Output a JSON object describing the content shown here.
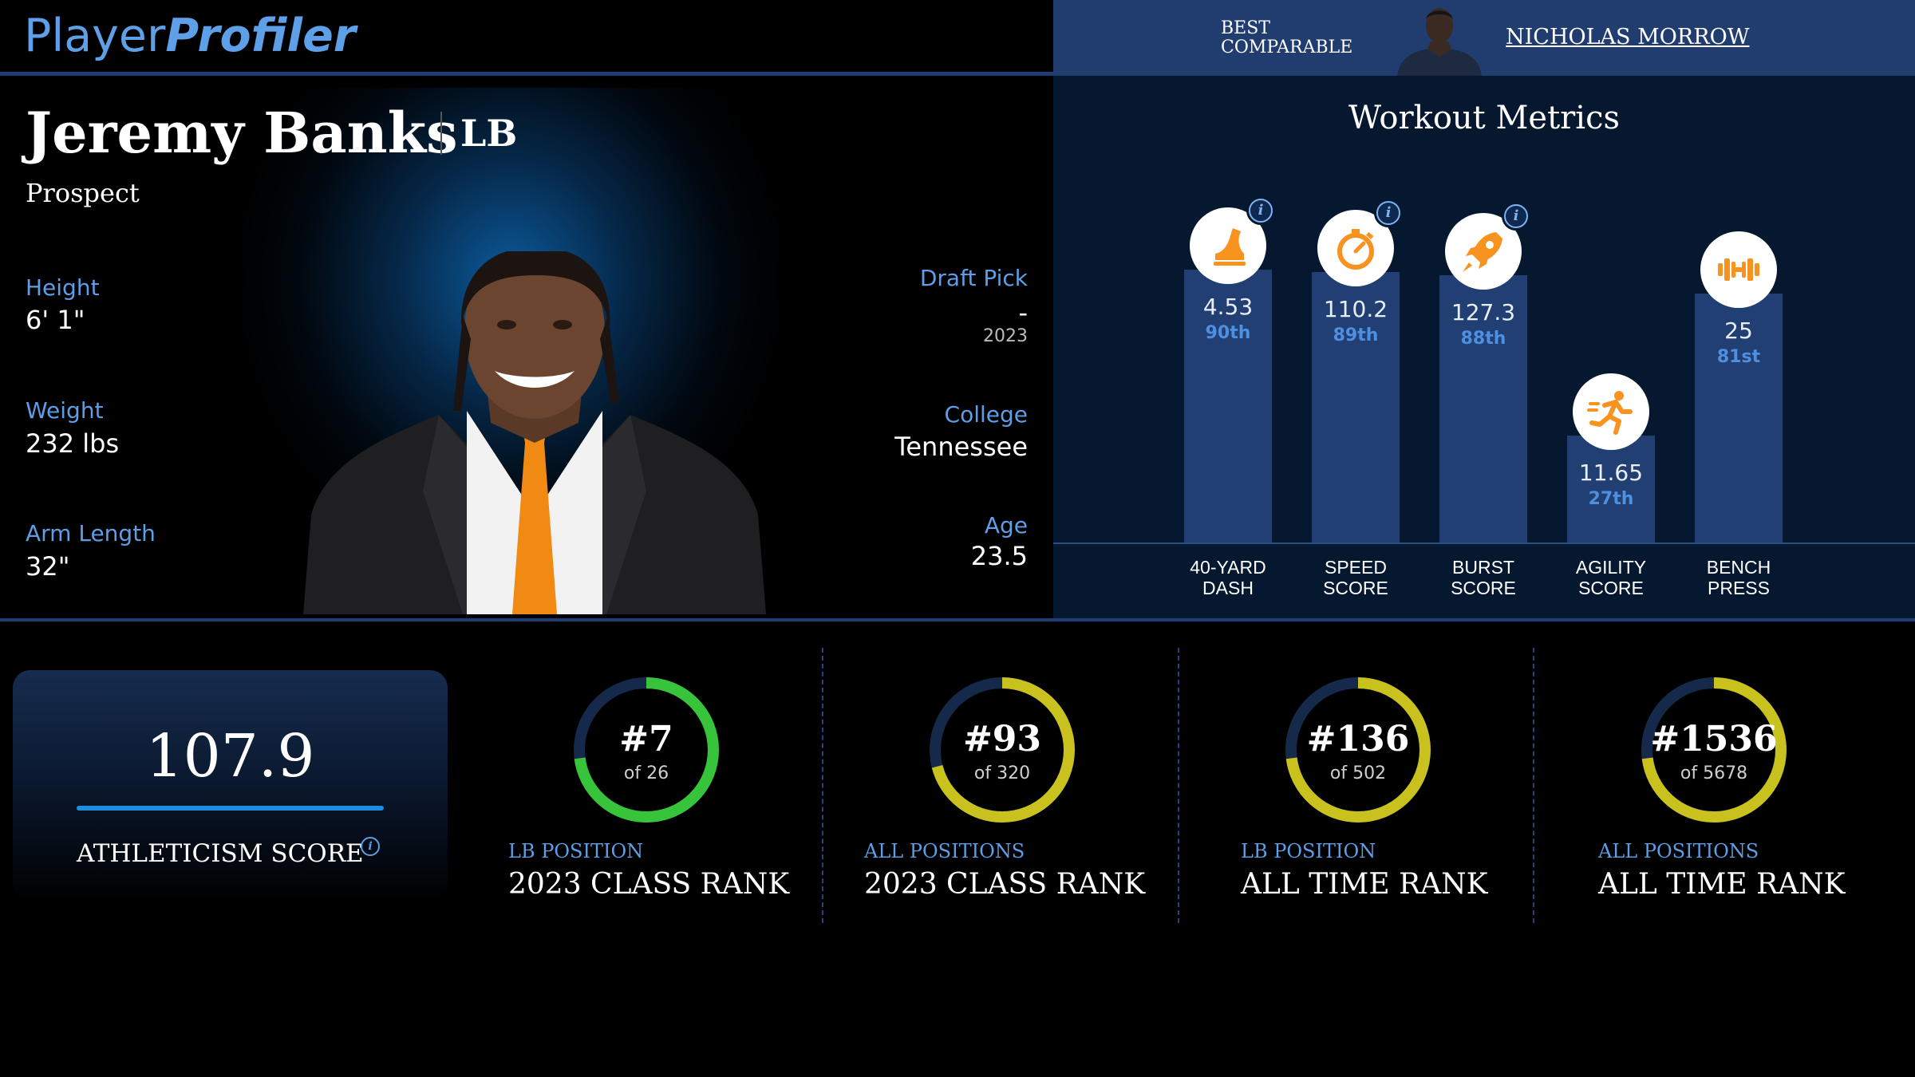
{
  "header": {
    "logo_part1": "Player",
    "logo_part2": "Profiler",
    "comparable_label_line1": "BEST",
    "comparable_label_line2": "COMPARABLE",
    "comparable_name": "NICHOLAS MORROW"
  },
  "player": {
    "name": "Jeremy Banks",
    "position": "LB",
    "status": "Prospect",
    "height_label": "Height",
    "height_value": "6' 1\"",
    "weight_label": "Weight",
    "weight_value": "232 lbs",
    "arm_label": "Arm Length",
    "arm_value": "32\"",
    "draft_label": "Draft Pick",
    "draft_value": "-",
    "draft_year": "2023",
    "college_label": "College",
    "college_value": "Tennessee",
    "age_label": "Age",
    "age_value": "23.5"
  },
  "workout": {
    "title": "Workout Metrics",
    "metrics": [
      {
        "line1": "40-YARD",
        "line2": "DASH",
        "value": "4.53",
        "percentile": "90th",
        "pct": 90,
        "icon": "shoe-icon",
        "info": true
      },
      {
        "line1": "SPEED",
        "line2": "SCORE",
        "value": "110.2",
        "percentile": "89th",
        "pct": 89,
        "icon": "stopwatch-icon",
        "info": true
      },
      {
        "line1": "BURST",
        "line2": "SCORE",
        "value": "127.3",
        "percentile": "88th",
        "pct": 88,
        "icon": "rocket-icon",
        "info": true
      },
      {
        "line1": "AGILITY",
        "line2": "SCORE",
        "value": "11.65",
        "percentile": "27th",
        "pct": 27,
        "icon": "runner-icon",
        "info": false
      },
      {
        "line1": "BENCH",
        "line2": "PRESS",
        "value": "25",
        "percentile": "81st",
        "pct": 81,
        "icon": "barbell-icon",
        "info": false
      }
    ],
    "info_glyph": "i",
    "accent_color": "#f7931e"
  },
  "athleticism": {
    "score": "107.9",
    "label": "ATHLETICISM SCORE",
    "info_glyph": "i"
  },
  "ranks": [
    {
      "rank": "#7",
      "of": "of 26",
      "fraction": 0.73,
      "color": "#37c43a",
      "category": "LB POSITION",
      "title": "2023 CLASS RANK"
    },
    {
      "rank": "#93",
      "of": "of 320",
      "fraction": 0.71,
      "color": "#c9c11e",
      "category": "ALL POSITIONS",
      "title": "2023 CLASS RANK"
    },
    {
      "rank": "#136",
      "of": "of 502",
      "fraction": 0.73,
      "color": "#c9c11e",
      "category": "LB POSITION",
      "title": "ALL TIME RANK"
    },
    {
      "rank": "#1536",
      "of": "of 5678",
      "fraction": 0.73,
      "color": "#c9c11e",
      "category": "ALL POSITIONS",
      "title": "ALL TIME RANK"
    }
  ],
  "colors": {
    "brand_blue": "#5ea0e8",
    "panel_navy": "#06182f",
    "bar_blue": "#223f73",
    "ring_track": "#15294a"
  }
}
